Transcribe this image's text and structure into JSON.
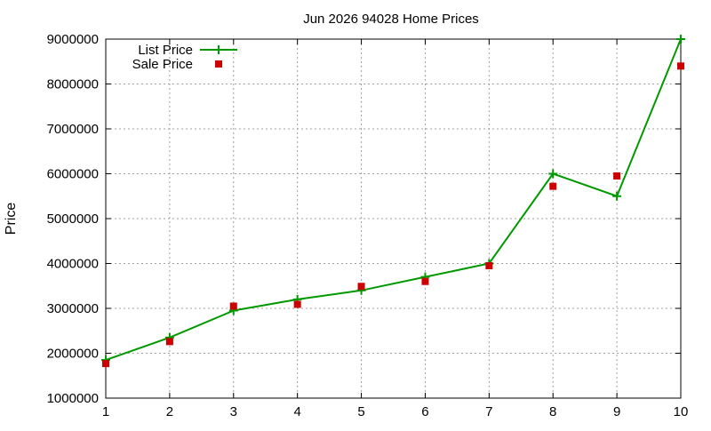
{
  "chart_data": {
    "type": "line",
    "title": "Jun 2026 94028 Home Prices",
    "xlabel": "",
    "ylabel": "Price",
    "x": [
      1,
      2,
      3,
      4,
      5,
      6,
      7,
      8,
      9,
      10
    ],
    "xlim": [
      1,
      10
    ],
    "ylim": [
      1000000,
      9000000
    ],
    "xticks": [
      "1",
      "2",
      "3",
      "4",
      "5",
      "6",
      "7",
      "8",
      "9",
      "10"
    ],
    "yticks": [
      "1000000",
      "2000000",
      "3000000",
      "4000000",
      "5000000",
      "6000000",
      "7000000",
      "8000000",
      "9000000"
    ],
    "grid": true,
    "legend_position": "top-left",
    "series": [
      {
        "name": "List Price",
        "style": "line-with-plus-markers",
        "color": "#009900",
        "values": [
          1850000,
          2350000,
          2950000,
          3200000,
          3400000,
          3700000,
          4000000,
          6000000,
          5500000,
          9000000
        ]
      },
      {
        "name": "Sale Price",
        "style": "square-markers",
        "color": "#cc0000",
        "values": [
          1770000,
          2260000,
          3050000,
          3090000,
          3490000,
          3600000,
          3950000,
          5720000,
          5950000,
          8400000
        ]
      }
    ]
  }
}
